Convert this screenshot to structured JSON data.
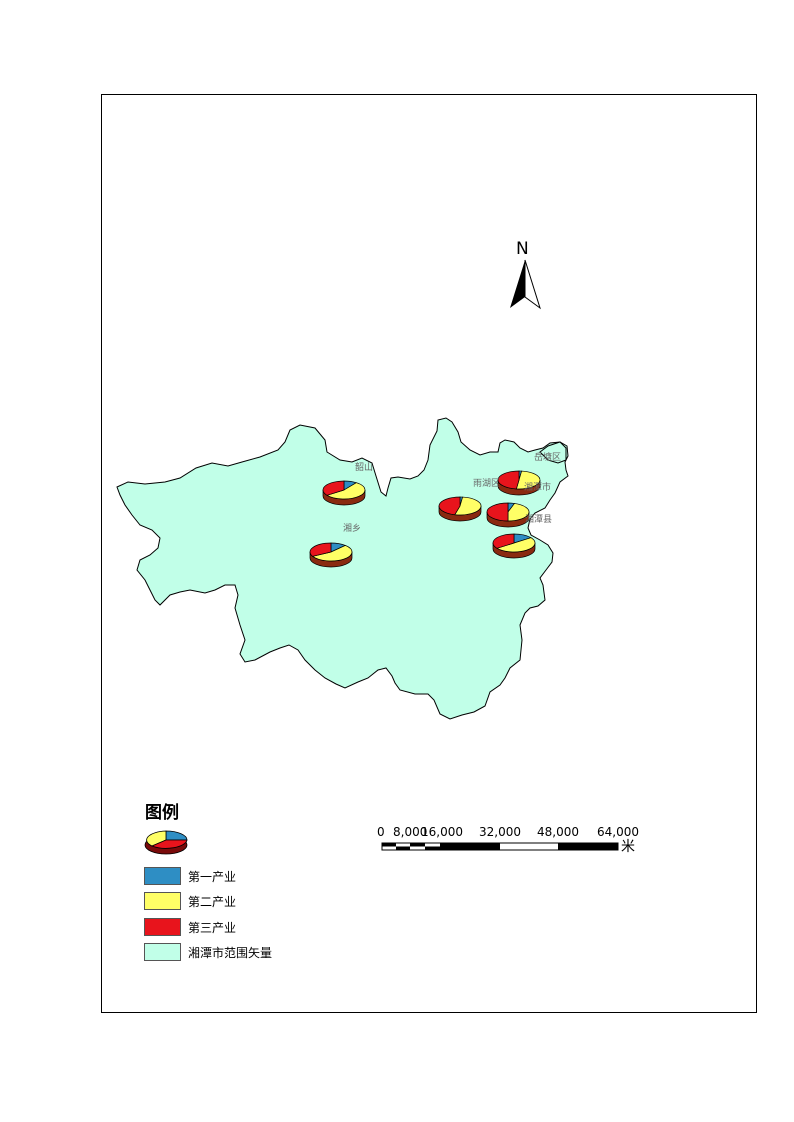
{
  "map": {
    "north_arrow": {
      "label": "N"
    },
    "region_color": "#c1ffe8",
    "places": [
      "韶山",
      "湘乡",
      "雨湖区",
      "岳塘区",
      "湘潭市",
      "湘潭县"
    ],
    "pie_colors": {
      "primary": "#2e8ec4",
      "secondary": "#ffff66",
      "tertiary": "#e8141c"
    }
  },
  "legend": {
    "title": "图例",
    "items": [
      {
        "label": "第一产业",
        "color": "#2e8ec4"
      },
      {
        "label": "第二产业",
        "color": "#ffff66"
      },
      {
        "label": "第三产业",
        "color": "#e8141c"
      },
      {
        "label": "湘潭市范围矢量",
        "color": "#c1ffe8"
      }
    ]
  },
  "scale_bar": {
    "ticks": [
      "0",
      "8,000",
      "16,000",
      "32,000",
      "48,000",
      "64,000"
    ],
    "unit": "米"
  }
}
